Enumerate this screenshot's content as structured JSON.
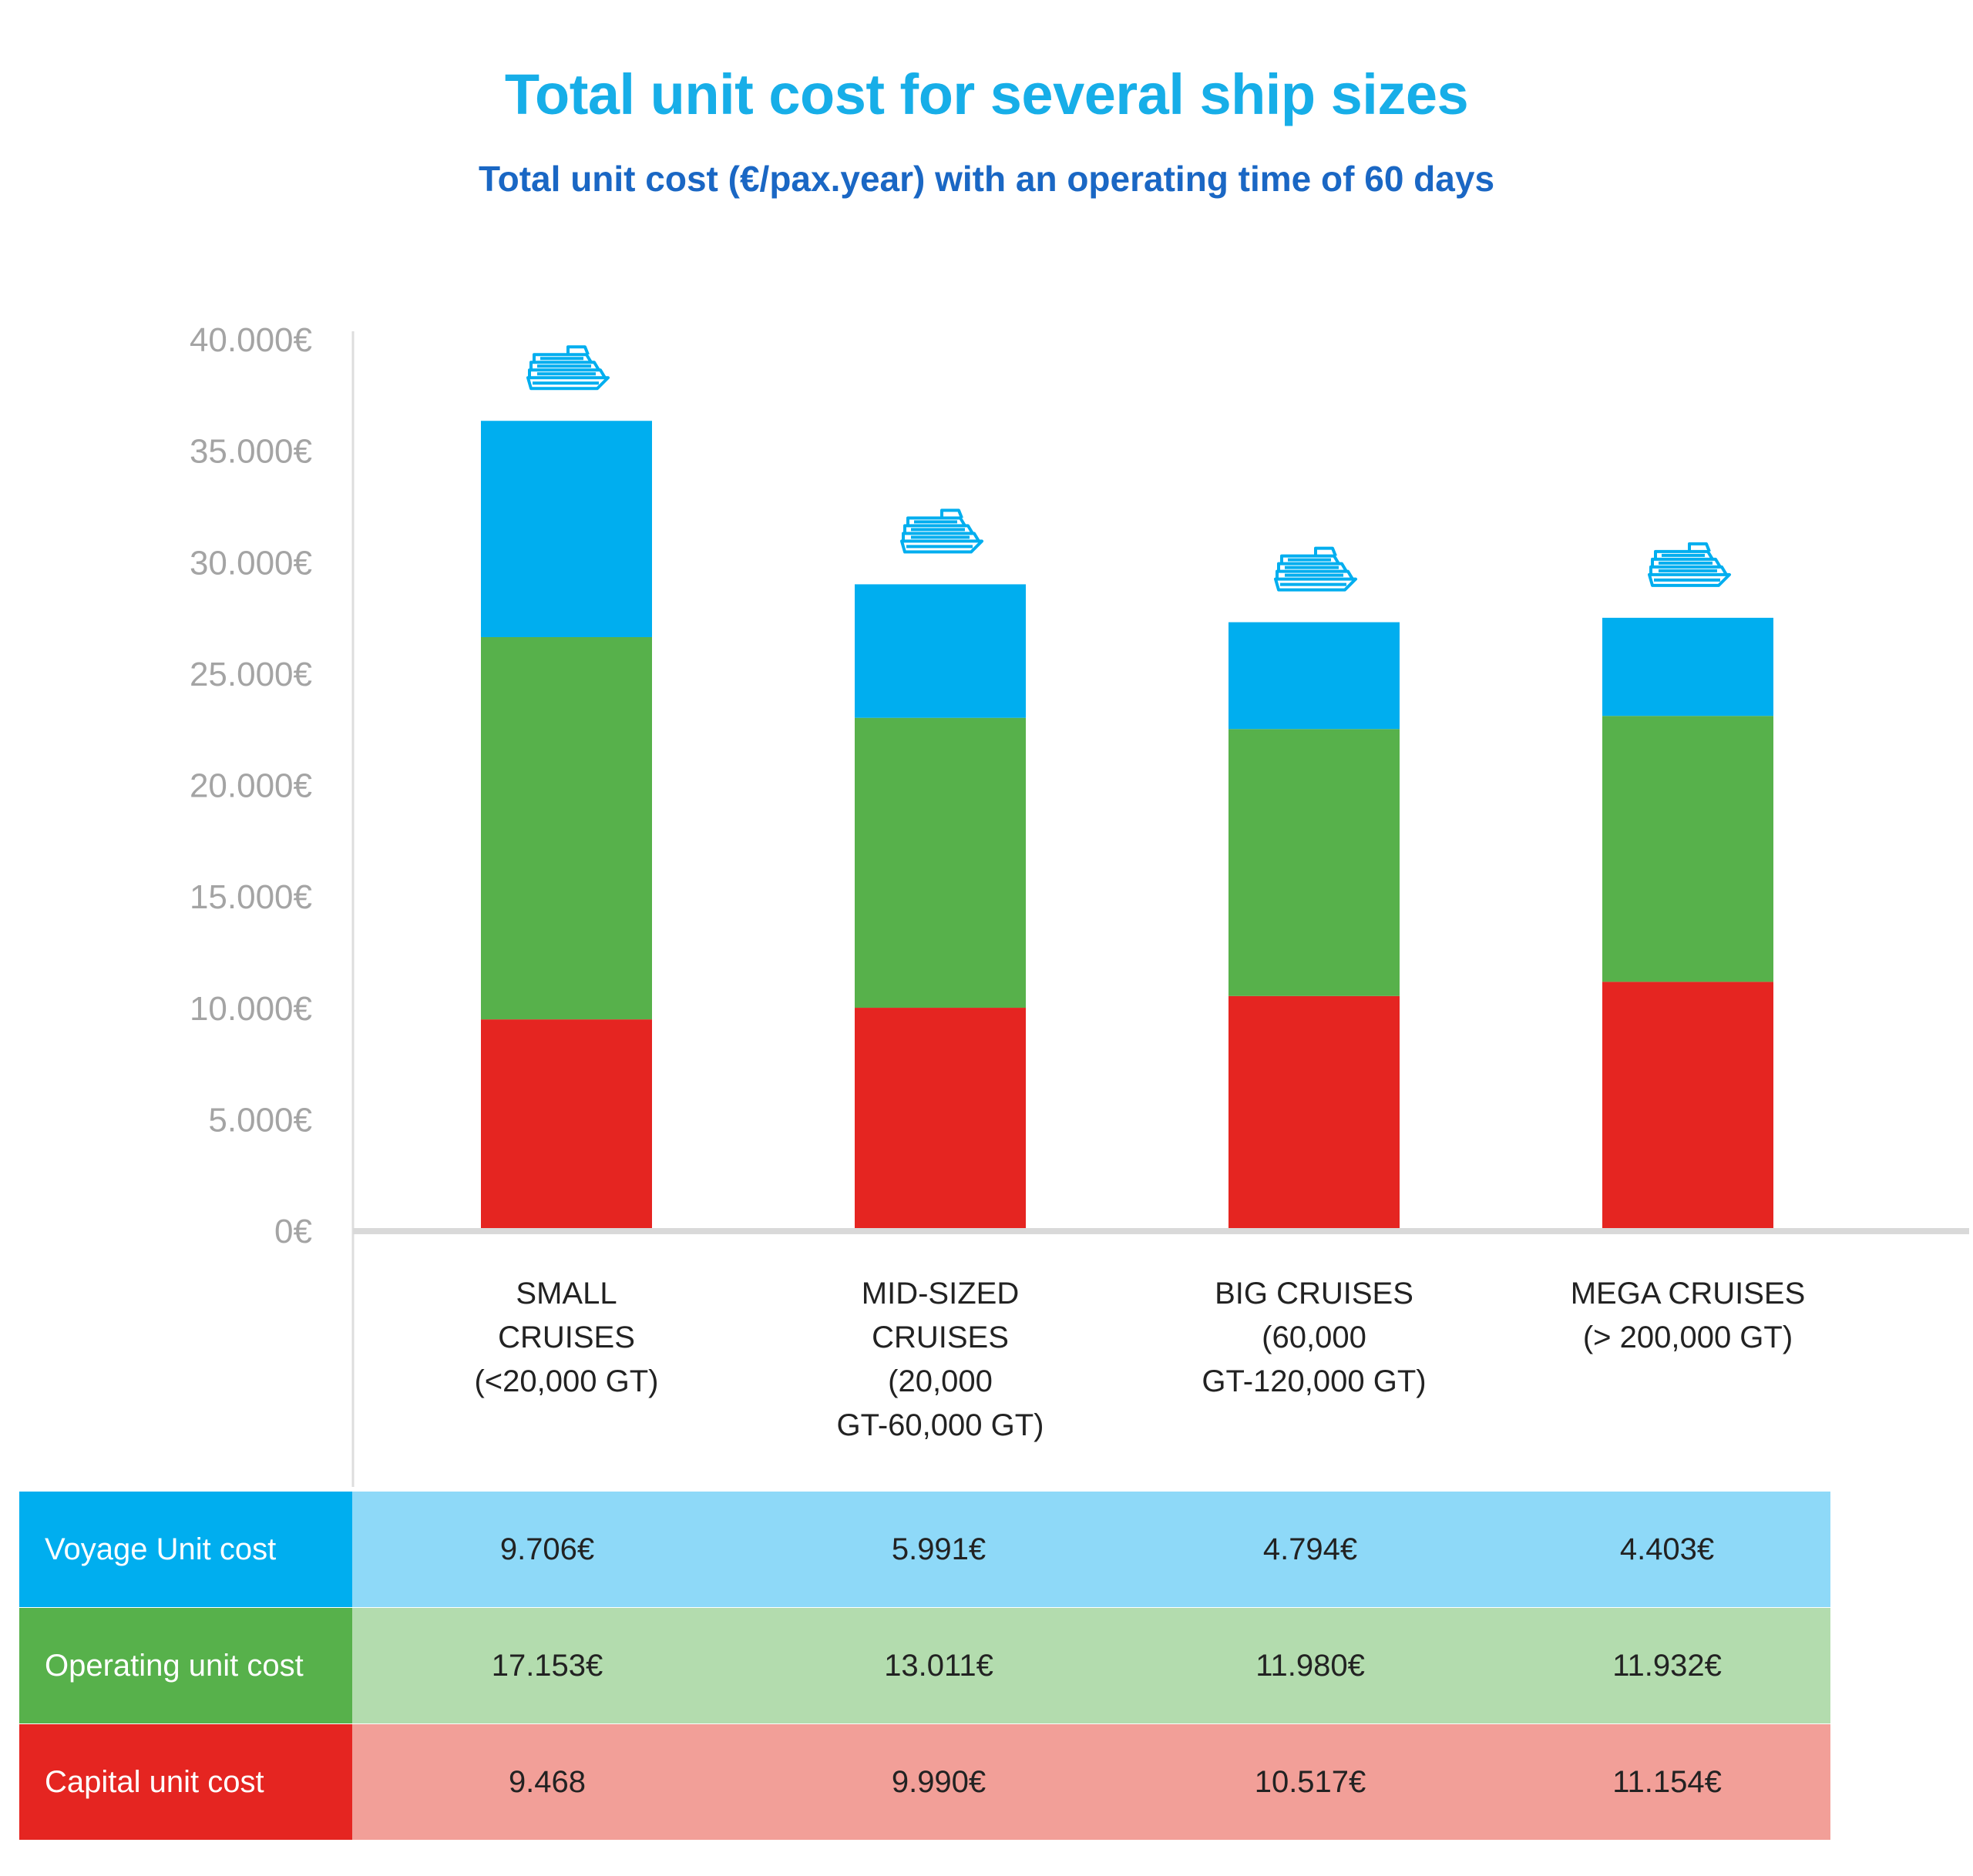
{
  "colors": {
    "voyage": "#00aeef",
    "operating": "#57b14b",
    "capital": "#e52521",
    "voyage_light": "#8ed9f8",
    "operating_light": "#b3dcae",
    "capital_light": "#f29f98",
    "title": "#17aee8",
    "subtitle": "#1a67c4",
    "axis_text": "#a4a4a4"
  },
  "icons": [
    "cruise-ship-icon"
  ],
  "chart_data": {
    "type": "bar",
    "stacked": true,
    "title": "Total unit cost for several ship sizes",
    "subtitle": "Total unit cost (€/pax.year) with an operating time of 60 days",
    "categories": [
      [
        "SMALL",
        "CRUISES",
        "(<20,000 GT)"
      ],
      [
        "MID-SIZED",
        "CRUISES",
        "(20,000",
        "GT-60,000 GT)"
      ],
      [
        "BIG CRUISES",
        "(60,000",
        "GT-120,000 GT)"
      ],
      [
        "MEGA CRUISES",
        "(> 200,000 GT)"
      ]
    ],
    "series": [
      {
        "key": "capital",
        "values": [
          9468,
          9990,
          10517,
          11154
        ]
      },
      {
        "key": "operating",
        "values": [
          17153,
          13011,
          11980,
          11932
        ]
      },
      {
        "key": "voyage",
        "values": [
          9706,
          5991,
          4794,
          4403
        ]
      }
    ],
    "ylim": [
      0,
      40000
    ],
    "y_ticks": [
      "0€",
      "5.000€",
      "10.000€",
      "15.000€",
      "20.000€",
      "25.000€",
      "30.000€",
      "35.000€",
      "40.000€"
    ],
    "y_tick_values": [
      0,
      5000,
      10000,
      15000,
      20000,
      25000,
      30000,
      35000,
      40000
    ],
    "grid": false,
    "legend": "table-below"
  },
  "table": {
    "rows": [
      {
        "key": "voyage",
        "label": "Voyage Unit cost",
        "values": [
          "9.706€",
          "5.991€",
          "4.794€",
          "4.403€"
        ]
      },
      {
        "key": "operating",
        "label": "Operating unit cost",
        "values": [
          "17.153€",
          "13.011€",
          "11.980€",
          "11.932€"
        ]
      },
      {
        "key": "capital",
        "label": "Capital unit cost",
        "values": [
          "9.468",
          "9.990€",
          "10.517€",
          "11.154€"
        ]
      }
    ]
  }
}
